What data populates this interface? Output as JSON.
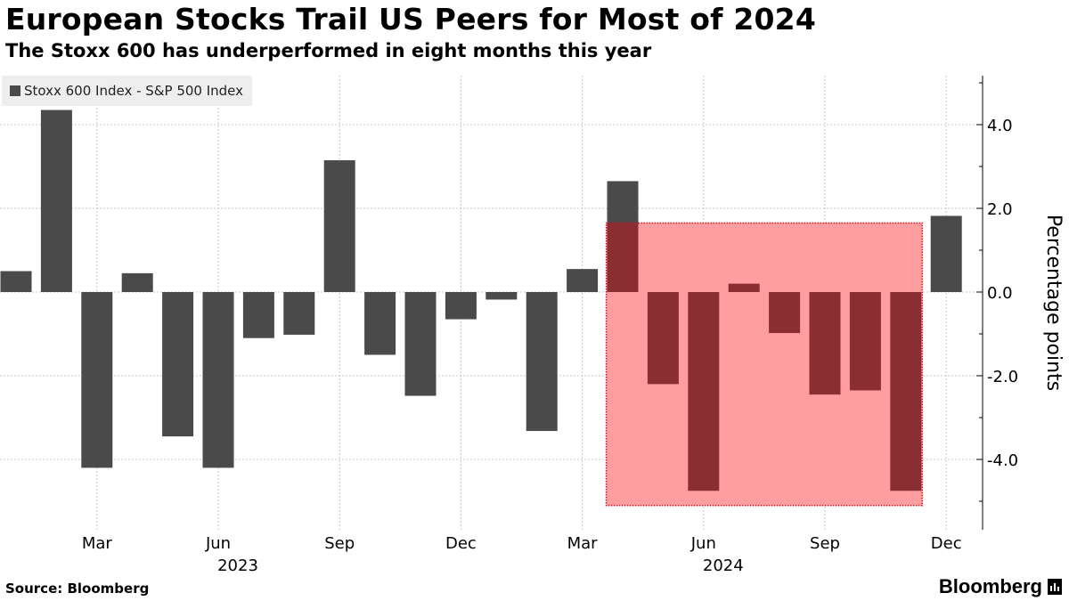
{
  "header": {
    "title": "European Stocks Trail US Peers for Most of 2024",
    "subtitle": "The Stoxx 600 has underperformed in eight months this year"
  },
  "footer": {
    "source": "Source: Bloomberg",
    "brand": "Bloomberg"
  },
  "colors": {
    "bar": "#4a4a4a",
    "highlight_bar": "#8b2e32",
    "highlight_fill": "#ff9da0",
    "highlight_border": "#e0101a",
    "grid": "#c8c8c8"
  },
  "chart_data": {
    "type": "bar",
    "title": "European Stocks Trail US Peers for Most of 2024",
    "subtitle": "The Stoxx 600 has underperformed in eight months this year",
    "legend": [
      "Stoxx 600 Index - S&P 500 Index"
    ],
    "legend_position": "top-left",
    "ylabel": "Percentage points",
    "y_axis_side": "right",
    "ylim": [
      -5.3,
      5.3
    ],
    "yticks": [
      4.0,
      2.0,
      0.0,
      -2.0,
      -4.0
    ],
    "ytick_labels": [
      "4.0",
      "2.0",
      "0.0",
      "-2.0",
      "-4.0"
    ],
    "categories": [
      "Jan 2023",
      "Feb 2023",
      "Mar 2023",
      "Apr 2023",
      "May 2023",
      "Jun 2023",
      "Jul 2023",
      "Aug 2023",
      "Sep 2023",
      "Oct 2023",
      "Nov 2023",
      "Dec 2023",
      "Jan 2024",
      "Feb 2024",
      "Mar 2024",
      "Apr 2024",
      "May 2024",
      "Jun 2024",
      "Jul 2024",
      "Aug 2024",
      "Sep 2024",
      "Oct 2024",
      "Nov 2024",
      "Dec 2024"
    ],
    "values": [
      0.5,
      4.35,
      -4.2,
      0.45,
      -3.45,
      -4.2,
      -1.1,
      -1.02,
      3.15,
      -1.5,
      -2.48,
      -0.65,
      -0.18,
      -3.32,
      0.55,
      2.65,
      -2.2,
      -4.75,
      0.2,
      -0.98,
      -2.45,
      -2.35,
      -4.75,
      1.82
    ],
    "highlighted": [
      false,
      false,
      false,
      false,
      false,
      false,
      false,
      false,
      false,
      false,
      false,
      false,
      false,
      false,
      false,
      false,
      true,
      true,
      true,
      true,
      true,
      true,
      true,
      false
    ],
    "highlight_region": {
      "from": "Apr 2024",
      "to": "Nov 2024",
      "ymin": -5.1,
      "ymax": 1.65
    },
    "x_tick_labels": [
      "Mar",
      "Jun",
      "Sep",
      "Dec",
      "Mar",
      "Jun",
      "Sep",
      "Dec"
    ],
    "x_tick_categories": [
      "Mar 2023",
      "Jun 2023",
      "Sep 2023",
      "Dec 2023",
      "Mar 2024",
      "Jun 2024",
      "Sep 2024",
      "Dec 2024"
    ],
    "year_labels": [
      "2023",
      "2024"
    ]
  }
}
